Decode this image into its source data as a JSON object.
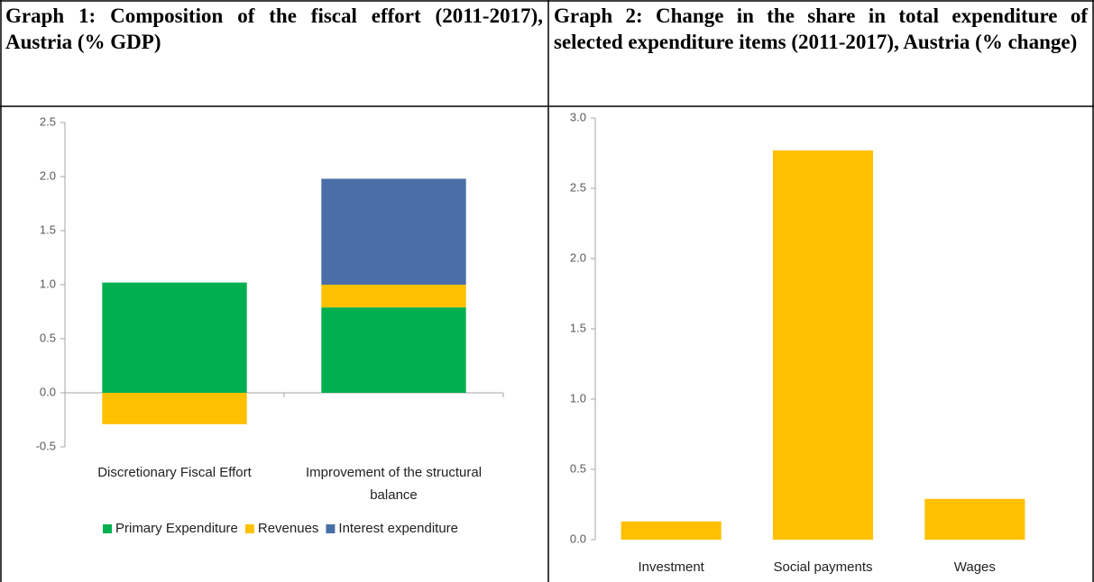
{
  "chart_data": [
    {
      "type": "bar",
      "title": "Graph 1: Composition of the fiscal effort (2011-2017), Austria (% GDP)",
      "categories": [
        "Discretionary Fiscal Effort",
        "Improvement of the structural balance"
      ],
      "series": [
        {
          "name": "Primary Expenditure",
          "color": "#00b050",
          "values": [
            1.02,
            0.79
          ]
        },
        {
          "name": "Revenues",
          "color": "#ffc000",
          "values": [
            -0.29,
            0.21
          ]
        },
        {
          "name": "Interest expenditure",
          "color": "#4a6fa8",
          "values": [
            null,
            0.98
          ]
        }
      ],
      "ylim": [
        -0.5,
        2.5
      ],
      "yticks": [
        -0.5,
        {
          "value": 0,
          "label": "0.0"
        },
        0.5,
        {
          "value": 1,
          "label": "1.0"
        },
        1.5,
        {
          "value": 2,
          "label": "2.0"
        },
        2.5
      ],
      "legend": "bottom",
      "grid": false
    },
    {
      "type": "bar",
      "title": "Graph 2: Change in the share in total expenditure of selected expenditure items (2011-2017), Austria (% change)",
      "categories": [
        "Investment",
        "Social payments",
        "Wages"
      ],
      "series": [
        {
          "color": "#ffc000",
          "values": [
            0.13,
            2.77,
            0.29
          ]
        }
      ],
      "ylim": [
        0,
        3
      ],
      "yticks": [
        {
          "value": 0,
          "label": "0.0"
        },
        0.5,
        {
          "value": 1,
          "label": "1.0"
        },
        1.5,
        {
          "value": 2,
          "label": "2.0"
        },
        2.5,
        {
          "value": 3,
          "label": "3.0"
        }
      ],
      "grid": false
    }
  ]
}
